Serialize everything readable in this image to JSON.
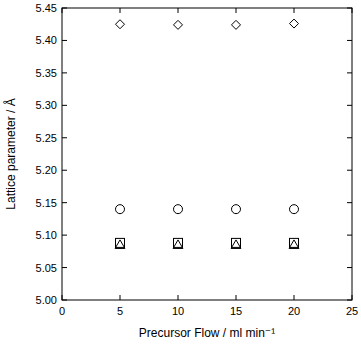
{
  "chart_data": {
    "type": "scatter",
    "x_label": "Precursor Flow / ml min⁻¹",
    "y_label": "Lattice parameter / Å",
    "x": [
      5,
      10,
      15,
      20
    ],
    "series": [
      {
        "marker": "diamond",
        "color": "#000000",
        "values": [
          5.425,
          5.424,
          5.424,
          5.426
        ]
      },
      {
        "marker": "circle",
        "color": "#000000",
        "values": [
          5.14,
          5.14,
          5.14,
          5.14
        ]
      },
      {
        "marker": "square",
        "color": "#000000",
        "values": [
          5.088,
          5.088,
          5.088,
          5.088
        ]
      },
      {
        "marker": "triangle",
        "color": "#000000",
        "values": [
          5.085,
          5.085,
          5.085,
          5.085
        ]
      }
    ],
    "xlim": [
      0,
      25
    ],
    "xticks": [
      0,
      5,
      10,
      15,
      20,
      25
    ],
    "ylim": [
      5.0,
      5.45
    ],
    "yticks": [
      {
        "value": 5.0,
        "label": "5.00"
      },
      {
        "value": 5.05,
        "label": "5.05"
      },
      {
        "value": 5.1,
        "label": "5.10"
      },
      {
        "value": 5.15,
        "label": "5.15"
      },
      {
        "value": 5.2,
        "label": "5.20"
      },
      {
        "value": 5.25,
        "label": "5.25"
      },
      {
        "value": 5.3,
        "label": "5.30"
      },
      {
        "value": 5.35,
        "label": "5.35"
      },
      {
        "value": 5.4,
        "label": "5.40"
      },
      {
        "value": 5.45,
        "label": "5.45"
      }
    ],
    "grid": false
  }
}
